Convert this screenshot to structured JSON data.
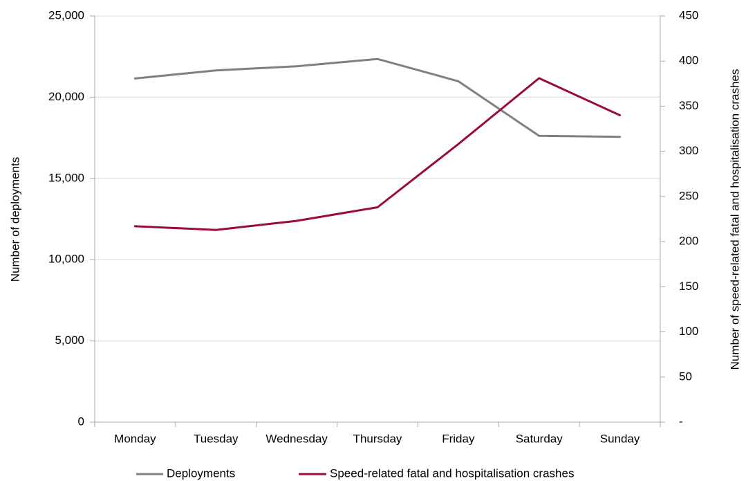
{
  "chart_data": {
    "type": "line",
    "categories": [
      "Monday",
      "Tuesday",
      "Wednesday",
      "Thursday",
      "Friday",
      "Saturday",
      "Sunday"
    ],
    "series": [
      {
        "name": "Deployments",
        "axis": "left",
        "color": "#808080",
        "values": [
          21150,
          21650,
          21900,
          22350,
          20980,
          17620,
          17560
        ]
      },
      {
        "name": "Speed-related fatal and hospitalisation crashes",
        "axis": "right",
        "color": "#9b0a3c",
        "values": [
          217,
          213,
          223,
          238,
          308,
          381,
          340
        ]
      }
    ],
    "ylabel": "Number of deployments",
    "ylim": [
      0,
      25000
    ],
    "yticks": [
      "0",
      "5,000",
      "10,000",
      "15,000",
      "20,000",
      "25,000"
    ],
    "y2label": "Number of speed-related fatal and hospitalisation crashes",
    "y2lim": [
      0,
      450
    ],
    "y2ticks": [
      "-",
      "50",
      "100",
      "150",
      "200",
      "250",
      "300",
      "350",
      "400",
      "450"
    ],
    "grid": "horizontal",
    "legend_position": "bottom"
  }
}
